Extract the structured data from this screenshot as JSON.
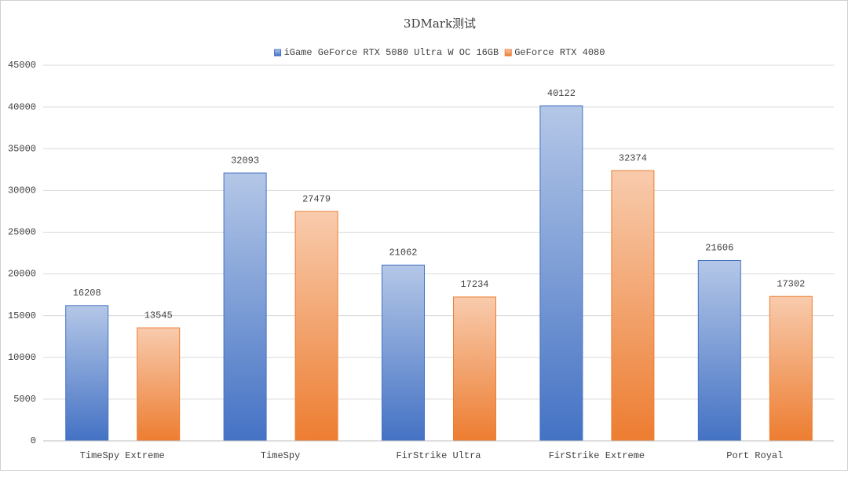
{
  "chart_data": {
    "type": "bar",
    "title": "3DMark测试",
    "categories": [
      "TimeSpy Extreme",
      "TimeSpy",
      "FirStrike Ultra",
      "FirStrike Extreme",
      "Port Royal"
    ],
    "series": [
      {
        "name": "iGame GeForce RTX 5080 Ultra W OC 16GB",
        "color": "#4472c4",
        "values": [
          16208,
          32093,
          21062,
          40122,
          21606
        ]
      },
      {
        "name": "GeForce RTX 4080",
        "color": "#ed7d31",
        "values": [
          13545,
          27479,
          17234,
          32374,
          17302
        ]
      }
    ],
    "ylim": [
      0,
      45000
    ],
    "yticks": [
      0,
      5000,
      10000,
      15000,
      20000,
      25000,
      30000,
      35000,
      40000,
      45000
    ],
    "grid": true,
    "legend": "top"
  }
}
